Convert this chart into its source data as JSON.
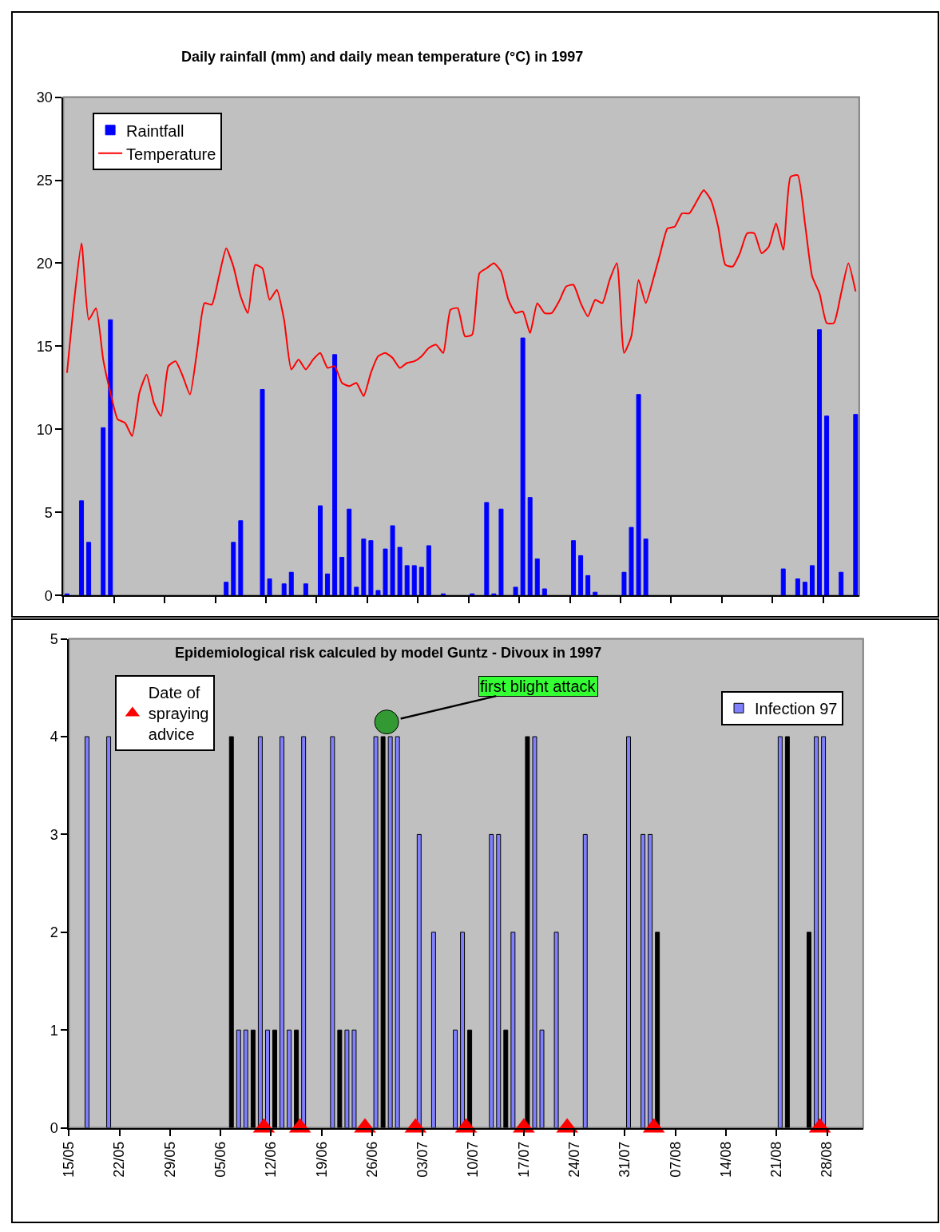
{
  "chart_data": [
    {
      "type": "bar",
      "title": "Daily rainfall (mm) and daily mean temperature (°C) in 1997",
      "legend": "top left",
      "tick_labels": "y",
      "xlim": [
        "1997-05-15",
        "1997-09-02"
      ],
      "xticks": [
        {
          "value": "1997-05-15",
          "label": null
        },
        {
          "value": "1997-05-22",
          "label": null
        },
        {
          "value": "1997-05-29",
          "label": null
        },
        {
          "value": "1997-06-05",
          "label": null
        },
        {
          "value": "1997-06-12",
          "label": null
        },
        {
          "value": "1997-06-19",
          "label": null
        },
        {
          "value": "1997-06-26",
          "label": null
        },
        {
          "value": "1997-07-03",
          "label": null
        },
        {
          "value": "1997-07-10",
          "label": null
        },
        {
          "value": "1997-07-17",
          "label": null
        },
        {
          "value": "1997-07-24",
          "label": null
        },
        {
          "value": "1997-07-31",
          "label": null
        },
        {
          "value": "1997-08-07",
          "label": null
        },
        {
          "value": "1997-08-14",
          "label": null
        },
        {
          "value": "1997-08-21",
          "label": null
        },
        {
          "value": "1997-08-28",
          "label": null
        }
      ],
      "ylim": [
        0,
        30
      ],
      "yticks": [
        0,
        5,
        10,
        15,
        20,
        25,
        30
      ],
      "series": [
        {
          "name": "Raintfall",
          "color": "#0000ff",
          "x": [
            "1997-05-15",
            "1997-05-17",
            "1997-05-18",
            "1997-05-20",
            "1997-05-21",
            "1997-06-06",
            "1997-06-07",
            "1997-06-08",
            "1997-06-11",
            "1997-06-12",
            "1997-06-14",
            "1997-06-15",
            "1997-06-17",
            "1997-06-19",
            "1997-06-20",
            "1997-06-21",
            "1997-06-22",
            "1997-06-23",
            "1997-06-24",
            "1997-06-25",
            "1997-06-26",
            "1997-06-27",
            "1997-06-28",
            "1997-06-29",
            "1997-06-30",
            "1997-07-01",
            "1997-07-02",
            "1997-07-03",
            "1997-07-04",
            "1997-07-06",
            "1997-07-10",
            "1997-07-12",
            "1997-07-13",
            "1997-07-14",
            "1997-07-16",
            "1997-07-17",
            "1997-07-18",
            "1997-07-19",
            "1997-07-20",
            "1997-07-24",
            "1997-07-25",
            "1997-07-26",
            "1997-07-27",
            "1997-07-31",
            "1997-08-01",
            "1997-08-02",
            "1997-08-03",
            "1997-08-22",
            "1997-08-24",
            "1997-08-25",
            "1997-08-26",
            "1997-08-27",
            "1997-08-28",
            "1997-08-30",
            "1997-09-01"
          ],
          "values": [
            0.1,
            5.7,
            3.2,
            10.1,
            16.6,
            0.8,
            3.2,
            4.5,
            12.4,
            1.0,
            0.7,
            1.4,
            0.7,
            5.4,
            1.3,
            14.5,
            2.3,
            5.2,
            0.5,
            3.4,
            3.3,
            0.3,
            2.8,
            4.2,
            2.9,
            1.8,
            1.8,
            1.7,
            3.0,
            0.1,
            0.1,
            5.6,
            0.1,
            5.2,
            0.5,
            15.5,
            5.9,
            2.2,
            0.4,
            3.3,
            2.4,
            1.2,
            0.2,
            1.4,
            4.1,
            12.1,
            3.4,
            1.6,
            1.0,
            0.8,
            1.8,
            16.0,
            10.8,
            1.4,
            10.9
          ]
        },
        {
          "name": "Temperature",
          "type": "line",
          "color": "#ff0000",
          "x": [
            "1997-05-15",
            "1997-05-16",
            "1997-05-17",
            "1997-05-18",
            "1997-05-19",
            "1997-05-20",
            "1997-05-21",
            "1997-05-22",
            "1997-05-23",
            "1997-05-24",
            "1997-05-25",
            "1997-05-26",
            "1997-05-27",
            "1997-05-28",
            "1997-05-29",
            "1997-05-30",
            "1997-05-31",
            "1997-06-01",
            "1997-06-02",
            "1997-06-03",
            "1997-06-04",
            "1997-06-05",
            "1997-06-06",
            "1997-06-07",
            "1997-06-08",
            "1997-06-09",
            "1997-06-10",
            "1997-06-11",
            "1997-06-12",
            "1997-06-13",
            "1997-06-14",
            "1997-06-15",
            "1997-06-16",
            "1997-06-17",
            "1997-06-18",
            "1997-06-19",
            "1997-06-20",
            "1997-06-21",
            "1997-06-22",
            "1997-06-23",
            "1997-06-24",
            "1997-06-25",
            "1997-06-26",
            "1997-06-27",
            "1997-06-28",
            "1997-06-29",
            "1997-06-30",
            "1997-07-01",
            "1997-07-02",
            "1997-07-03",
            "1997-07-04",
            "1997-07-05",
            "1997-07-06",
            "1997-07-07",
            "1997-07-08",
            "1997-07-09",
            "1997-07-10",
            "1997-07-11",
            "1997-07-12",
            "1997-07-13",
            "1997-07-14",
            "1997-07-15",
            "1997-07-16",
            "1997-07-17",
            "1997-07-18",
            "1997-07-19",
            "1997-07-20",
            "1997-07-21",
            "1997-07-22",
            "1997-07-23",
            "1997-07-24",
            "1997-07-25",
            "1997-07-26",
            "1997-07-27",
            "1997-07-28",
            "1997-07-29",
            "1997-07-30",
            "1997-07-31",
            "1997-08-01",
            "1997-08-02",
            "1997-08-03",
            "1997-08-04",
            "1997-08-05",
            "1997-08-06",
            "1997-08-07",
            "1997-08-08",
            "1997-08-09",
            "1997-08-10",
            "1997-08-11",
            "1997-08-12",
            "1997-08-13",
            "1997-08-14",
            "1997-08-15",
            "1997-08-16",
            "1997-08-17",
            "1997-08-18",
            "1997-08-19",
            "1997-08-20",
            "1997-08-21",
            "1997-08-22",
            "1997-08-23",
            "1997-08-24",
            "1997-08-25",
            "1997-08-26",
            "1997-08-27",
            "1997-08-28",
            "1997-08-29",
            "1997-08-30",
            "1997-08-31",
            "1997-09-01"
          ],
          "values": [
            13.4,
            17.8,
            21.2,
            16.6,
            17.3,
            14.2,
            12.2,
            10.6,
            10.4,
            9.6,
            12.2,
            13.3,
            11.6,
            10.8,
            13.8,
            14.1,
            13.2,
            12.1,
            14.8,
            17.6,
            17.5,
            19.2,
            20.9,
            19.8,
            18.0,
            17.0,
            19.9,
            19.7,
            17.8,
            18.4,
            16.6,
            13.6,
            14.2,
            13.6,
            14.2,
            14.6,
            13.7,
            13.8,
            12.8,
            12.6,
            12.8,
            12.0,
            13.4,
            14.4,
            14.6,
            14.3,
            13.7,
            14.0,
            14.1,
            14.4,
            14.9,
            15.1,
            14.6,
            17.2,
            17.3,
            15.6,
            15.7,
            19.4,
            19.7,
            20.0,
            19.5,
            17.8,
            17.0,
            17.1,
            15.8,
            17.6,
            17.0,
            17.0,
            17.7,
            18.6,
            18.7,
            17.6,
            16.8,
            17.8,
            17.6,
            19.0,
            20.0,
            14.6,
            15.6,
            19.0,
            17.6,
            19.0,
            20.6,
            22.1,
            22.2,
            23.0,
            23.0,
            23.7,
            24.4,
            23.8,
            22.2,
            19.9,
            19.8,
            20.6,
            21.8,
            21.8,
            20.6,
            21.0,
            22.4,
            20.8,
            25.2,
            25.3,
            22.4,
            19.2,
            18.2,
            16.4,
            16.4,
            18.2,
            20.0,
            18.3
          ]
        }
      ]
    },
    {
      "type": "bar",
      "title": "Epidemiological risk calculed by model Guntz - Divoux in 1997",
      "legend": "top right",
      "xlim": [
        "1997-05-15",
        "1997-09-02"
      ],
      "xticks": [
        {
          "value": "1997-05-15",
          "label": "15/05"
        },
        {
          "value": "1997-05-22",
          "label": "22/05"
        },
        {
          "value": "1997-05-29",
          "label": "29/05"
        },
        {
          "value": "1997-06-05",
          "label": "05/06"
        },
        {
          "value": "1997-06-12",
          "label": "12/06"
        },
        {
          "value": "1997-06-19",
          "label": "19/06"
        },
        {
          "value": "1997-06-26",
          "label": "26/06"
        },
        {
          "value": "1997-07-03",
          "label": "03/07"
        },
        {
          "value": "1997-07-10",
          "label": "10/07"
        },
        {
          "value": "1997-07-17",
          "label": "17/07"
        },
        {
          "value": "1997-07-24",
          "label": "24/07"
        },
        {
          "value": "1997-07-31",
          "label": "31/07"
        },
        {
          "value": "1997-08-07",
          "label": "07/08"
        },
        {
          "value": "1997-08-14",
          "label": "14/08"
        },
        {
          "value": "1997-08-21",
          "label": "21/08"
        },
        {
          "value": "1997-08-28",
          "label": "28/08"
        }
      ],
      "ylim": [
        0,
        5
      ],
      "yticks": [
        0,
        1,
        2,
        3,
        4,
        5
      ],
      "annotations": [
        {
          "text": "first blight attack",
          "x": "1997-06-28",
          "y": 4.15
        }
      ],
      "series": [
        {
          "name": "Infection 97",
          "color": "#8080ff",
          "x": [
            "1997-05-17",
            "1997-05-20",
            "1997-06-06",
            "1997-06-07",
            "1997-06-08",
            "1997-06-09",
            "1997-06-10",
            "1997-06-11",
            "1997-06-12",
            "1997-06-13",
            "1997-06-14",
            "1997-06-15",
            "1997-06-16",
            "1997-06-20",
            "1997-06-21",
            "1997-06-22",
            "1997-06-23",
            "1997-06-26",
            "1997-06-27",
            "1997-06-28",
            "1997-06-29",
            "1997-07-02",
            "1997-07-04",
            "1997-07-07",
            "1997-07-08",
            "1997-07-09",
            "1997-07-12",
            "1997-07-13",
            "1997-07-14",
            "1997-07-15",
            "1997-07-17",
            "1997-07-18",
            "1997-07-19",
            "1997-07-21",
            "1997-07-25",
            "1997-07-31",
            "1997-08-02",
            "1997-08-03",
            "1997-08-04",
            "1997-08-21",
            "1997-08-22",
            "1997-08-25",
            "1997-08-26",
            "1997-08-27"
          ],
          "values": [
            4,
            4,
            4,
            1,
            1,
            1,
            4,
            1,
            1,
            4,
            1,
            1,
            4,
            4,
            1,
            1,
            1,
            4,
            4,
            4,
            4,
            3,
            2,
            1,
            2,
            1,
            3,
            3,
            1,
            2,
            4,
            4,
            1,
            2,
            3,
            4,
            3,
            3,
            2,
            4,
            4,
            2,
            4,
            4
          ],
          "colors": [
            null,
            null,
            "#000000",
            null,
            null,
            "#000000",
            null,
            null,
            "#000000",
            null,
            null,
            "#000000",
            null,
            null,
            "#000000",
            null,
            null,
            null,
            "#000000",
            null,
            null,
            null,
            null,
            null,
            null,
            "#000000",
            null,
            null,
            "#000000",
            null,
            "#000000",
            null,
            null,
            null,
            null,
            null,
            null,
            null,
            "#000000",
            null,
            "#000000",
            "#000000",
            null,
            null
          ]
        },
        {
          "name": "Date of spraying advice",
          "type": "scatter",
          "marker": "triangle",
          "color": "#ff0000",
          "x": [
            "1997-06-11",
            "1997-06-16",
            "1997-06-25",
            "1997-07-02",
            "1997-07-09",
            "1997-07-17",
            "1997-07-23",
            "1997-08-04",
            "1997-08-27"
          ],
          "values": [
            0,
            0,
            0,
            0,
            0,
            0,
            0,
            0,
            0
          ]
        },
        {
          "type": "scatter",
          "marker": "circle",
          "color": "#339933",
          "x": [
            "1997-06-28"
          ],
          "values": [
            4.15
          ]
        }
      ]
    }
  ]
}
